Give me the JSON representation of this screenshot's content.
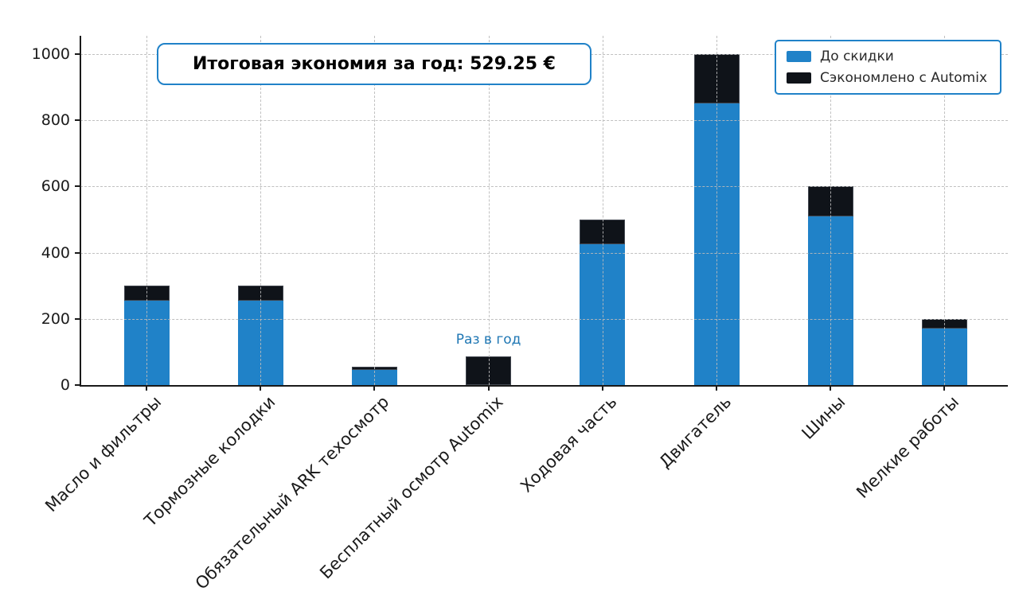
{
  "accent_blue": "#2082c8",
  "chart_data": {
    "type": "bar",
    "stacked": true,
    "title": "Итоговая экономия за год: 529.25 €",
    "total_savings_eur": 529.25,
    "categories": [
      "Масло и фильтры",
      "Тормозные колодки",
      "Обязательный ARK техосмотр",
      "Бесплатный осмотр Automix",
      "Ходовая часть",
      "Двигатель",
      "Шины",
      "Мелкие работы"
    ],
    "series": [
      {
        "name": "До скидки",
        "color": "#2082c8",
        "values": [
          255,
          255,
          46.75,
          0,
          425,
          850,
          510,
          170
        ]
      },
      {
        "name": "Сэкономлено с Automix",
        "color": "#0f1319",
        "values": [
          45,
          45,
          8.25,
          86,
          75,
          150,
          90,
          30
        ]
      }
    ],
    "stack_totals": [
      300,
      300,
      55,
      86,
      500,
      1000,
      600,
      200
    ],
    "yticks": [
      0,
      200,
      400,
      600,
      800,
      1000
    ],
    "ylim": [
      0,
      1055
    ],
    "xlabel": "",
    "ylabel": "",
    "grid": true,
    "grid_style": "dashed",
    "legend_position": "upper right",
    "annotation": {
      "text": "Раз в год",
      "category": "Бесплатный осмотр Automix",
      "category_index": 3,
      "color": "#1f77b4"
    }
  }
}
